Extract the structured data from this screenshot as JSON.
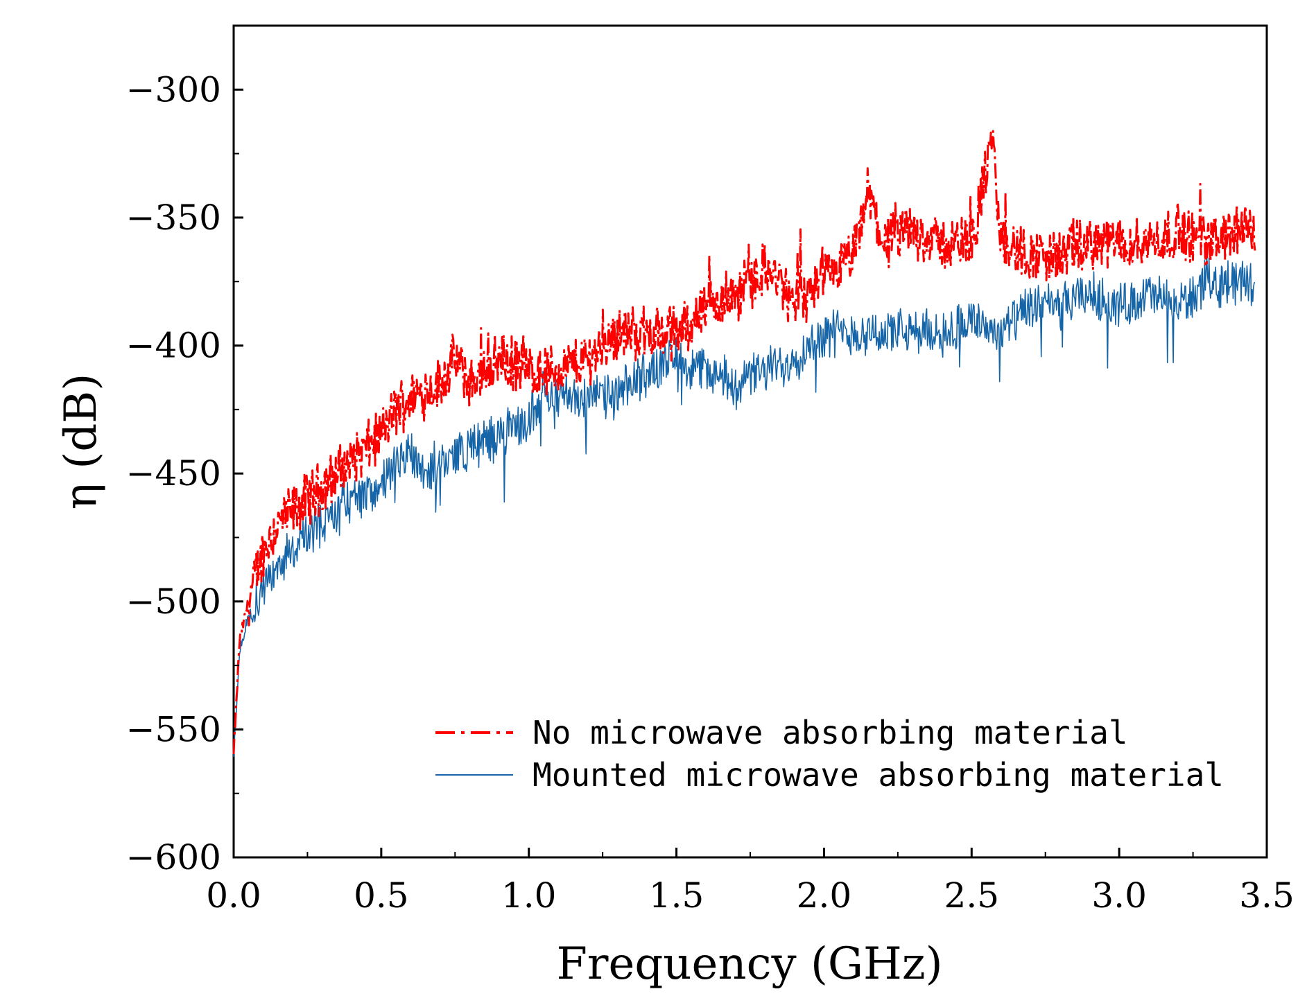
{
  "chart_data": {
    "type": "line",
    "title": "",
    "xlabel": "Frequency (GHz)",
    "ylabel": "η (dB)",
    "xlim": [
      0.0,
      3.5
    ],
    "ylim": [
      -600,
      -275
    ],
    "xticks": [
      "0.0",
      "0.5",
      "1.0",
      "1.5",
      "2.0",
      "2.5",
      "3.0",
      "3.5"
    ],
    "yticks": [
      "-300",
      "-350",
      "-400",
      "-450",
      "-500",
      "-550",
      "-600"
    ],
    "legend_position": "bottom-right",
    "grid": false,
    "series": [
      {
        "name": "No microwave absorbing material",
        "color": "#ff0000",
        "style": "dash-dot",
        "x": [
          0.0,
          0.02,
          0.05,
          0.1,
          0.15,
          0.2,
          0.3,
          0.4,
          0.5,
          0.55,
          0.6,
          0.7,
          0.75,
          0.8,
          0.9,
          1.0,
          1.1,
          1.2,
          1.3,
          1.4,
          1.5,
          1.6,
          1.7,
          1.8,
          1.85,
          1.9,
          2.0,
          2.1,
          2.15,
          2.2,
          2.3,
          2.4,
          2.5,
          2.57,
          2.6,
          2.7,
          2.8,
          2.9,
          3.0,
          3.1,
          3.2,
          3.3,
          3.4,
          3.46
        ],
        "values": [
          -560,
          -515,
          -500,
          -480,
          -470,
          -465,
          -455,
          -445,
          -435,
          -425,
          -420,
          -415,
          -405,
          -415,
          -405,
          -410,
          -410,
          -405,
          -395,
          -395,
          -395,
          -385,
          -380,
          -370,
          -375,
          -385,
          -375,
          -365,
          -340,
          -360,
          -355,
          -360,
          -360,
          -320,
          -360,
          -365,
          -365,
          -360,
          -360,
          -360,
          -355,
          -360,
          -355,
          -355
        ]
      },
      {
        "name": "Mounted microwave absorbing material",
        "color": "#1565a8",
        "style": "solid",
        "x": [
          0.0,
          0.02,
          0.05,
          0.1,
          0.15,
          0.2,
          0.3,
          0.4,
          0.5,
          0.6,
          0.65,
          0.7,
          0.8,
          0.9,
          1.0,
          1.05,
          1.1,
          1.2,
          1.3,
          1.4,
          1.5,
          1.6,
          1.7,
          1.8,
          1.9,
          2.0,
          2.1,
          2.2,
          2.3,
          2.4,
          2.5,
          2.6,
          2.7,
          2.8,
          2.9,
          3.0,
          3.1,
          3.2,
          3.3,
          3.4,
          3.46
        ],
        "values": [
          -560,
          -520,
          -505,
          -495,
          -485,
          -480,
          -470,
          -460,
          -455,
          -440,
          -450,
          -445,
          -440,
          -435,
          -430,
          -415,
          -420,
          -420,
          -420,
          -410,
          -405,
          -410,
          -415,
          -410,
          -405,
          -395,
          -395,
          -395,
          -395,
          -395,
          -390,
          -395,
          -385,
          -385,
          -380,
          -385,
          -380,
          -385,
          -375,
          -375,
          -375
        ]
      }
    ]
  }
}
